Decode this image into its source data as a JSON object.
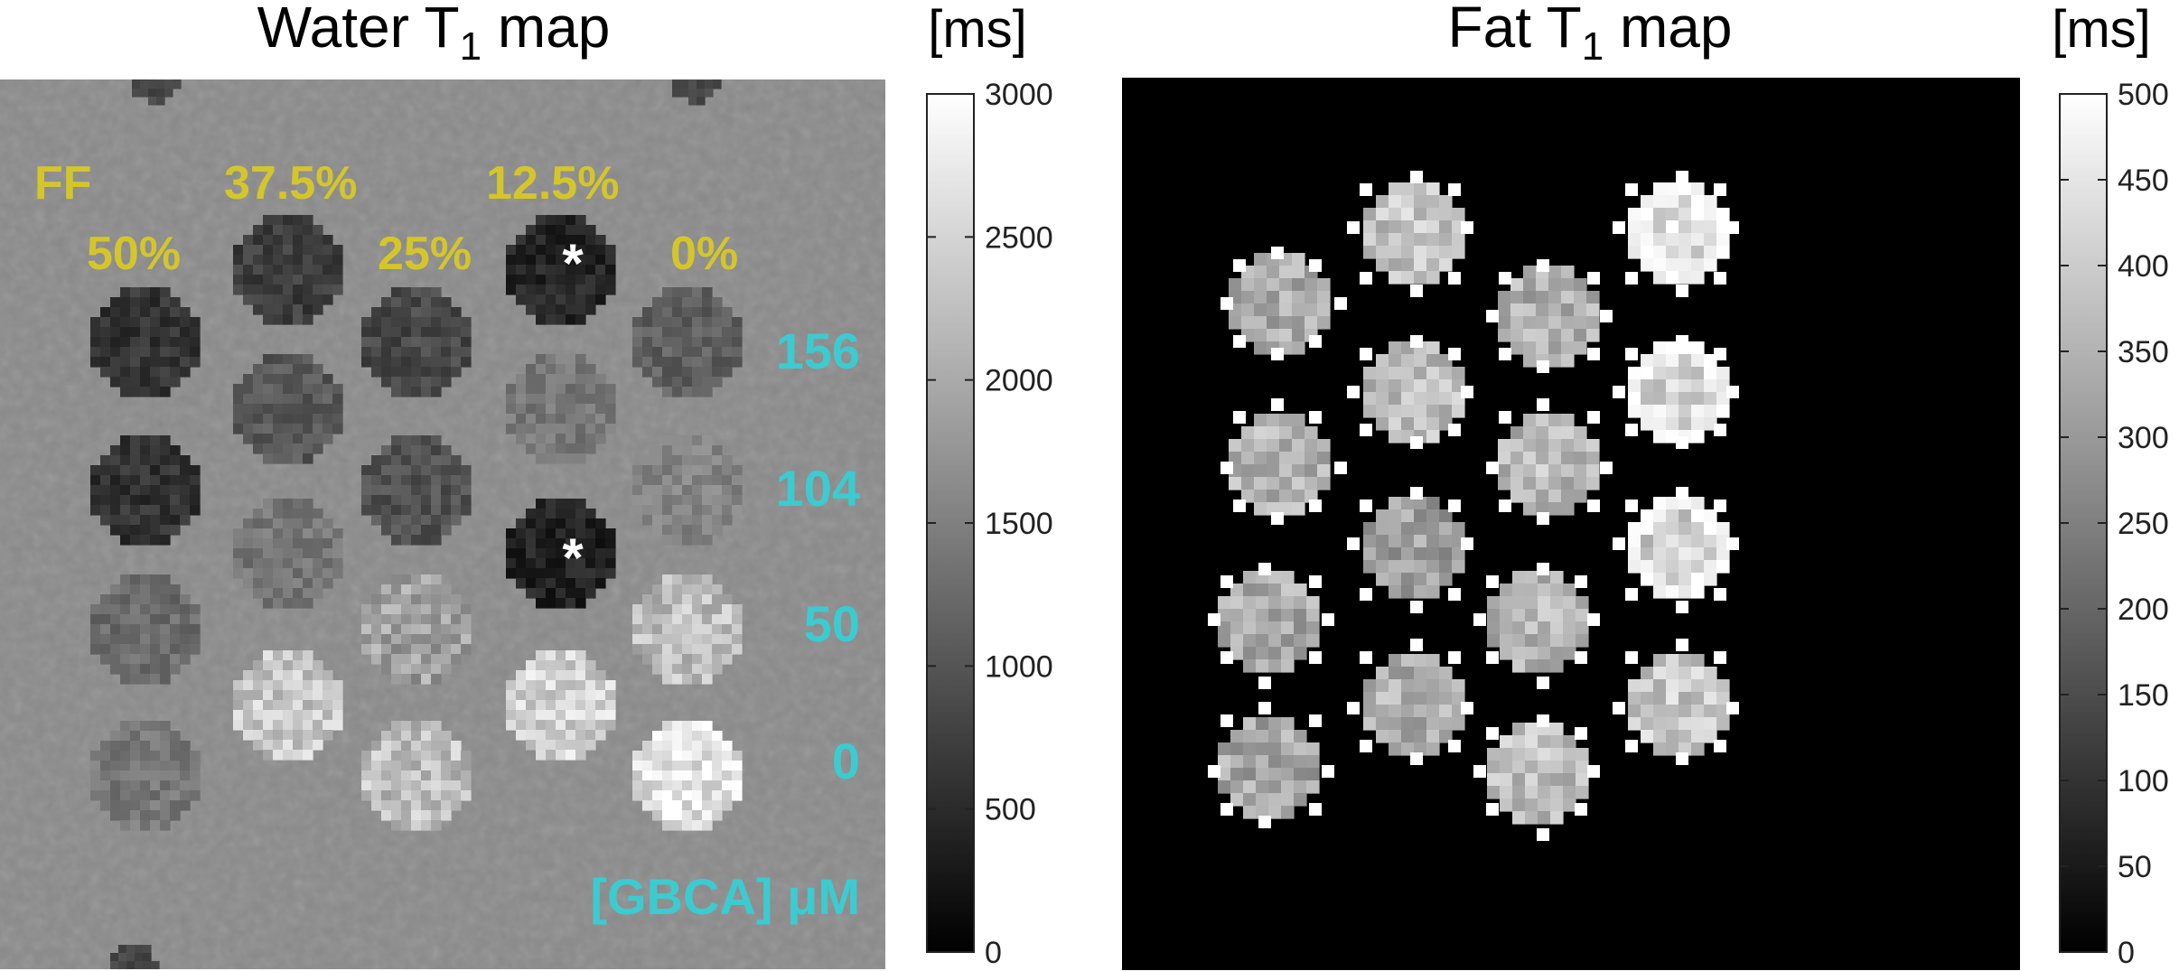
{
  "figure": {
    "left_panel": {
      "title_main": "Water T",
      "title_sub": "1",
      "title_tail": " map",
      "unit": "[ms]",
      "colorbar_ticks": [
        "3000",
        "2500",
        "2000",
        "1500",
        "1000",
        "500",
        "0"
      ],
      "ff_header": "FF",
      "ff_labels": [
        "37.5%",
        "12.5%",
        "50%",
        "25%",
        "0%"
      ],
      "gbca_labels": [
        "156",
        "104",
        "50",
        "0"
      ],
      "gbca_unit": "[GBCA]  μM",
      "asterisk": "*",
      "label_colors": {
        "ff": "#d4c62a",
        "gbca": "#3ccbd0",
        "asterisk": "#ffffff"
      }
    },
    "right_panel": {
      "title_main": "Fat T",
      "title_sub": "1",
      "title_tail": " map",
      "unit": "[ms]",
      "colorbar_ticks": [
        "500",
        "450",
        "400",
        "350",
        "300",
        "250",
        "200",
        "150",
        "100",
        "50",
        "0"
      ]
    }
  }
}
